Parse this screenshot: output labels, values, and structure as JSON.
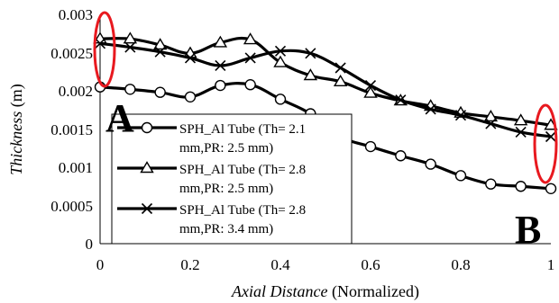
{
  "chart_data": {
    "type": "line",
    "xlabel_italic": "Axial Distance",
    "xlabel_rest": " (Normalized)",
    "ylabel_italic": "Thickness",
    "ylabel_rest": " (m)",
    "xlim": [
      0,
      1
    ],
    "ylim": [
      0,
      0.003
    ],
    "xticks": [
      0,
      0.2,
      0.4,
      0.6,
      0.8,
      1
    ],
    "xtick_labels": [
      "0",
      "0.2",
      "0.4",
      "0.6",
      "0.8",
      "1"
    ],
    "yticks": [
      0,
      0.0005,
      0.001,
      0.0015,
      0.002,
      0.0025,
      0.003
    ],
    "ytick_labels": [
      "0",
      "0.0005",
      "0.001",
      "0.0015",
      "0.002",
      "0.0025",
      "0.003"
    ],
    "grid": false,
    "legend_position": "bottom-left",
    "series": [
      {
        "name_line1": "SPH_Al Tube (Th= 2.1",
        "name_line2": "mm,PR: 2.5 mm)",
        "marker": "circle",
        "x": [
          0,
          0.0667,
          0.1333,
          0.2,
          0.2667,
          0.3333,
          0.4,
          0.4667,
          0.5333,
          0.6,
          0.6667,
          0.7333,
          0.8,
          0.8667,
          0.9333,
          1
        ],
        "y": [
          0.00205,
          0.00202,
          0.00198,
          0.00192,
          0.00207,
          0.00208,
          0.00189,
          0.0017,
          0.0014,
          0.00127,
          0.00115,
          0.00104,
          0.00089,
          0.00078,
          0.00075,
          0.00072
        ]
      },
      {
        "name_line1": "SPH_Al Tube (Th= 2.8",
        "name_line2": "mm,PR: 2.5 mm)",
        "marker": "triangle",
        "x": [
          0,
          0.0667,
          0.1333,
          0.2,
          0.2667,
          0.3333,
          0.4,
          0.4667,
          0.5333,
          0.6,
          0.6667,
          0.7333,
          0.8,
          0.8667,
          0.9333,
          1
        ],
        "y": [
          0.00268,
          0.00268,
          0.0026,
          0.00249,
          0.00263,
          0.00267,
          0.00237,
          0.0022,
          0.00212,
          0.00197,
          0.00187,
          0.0018,
          0.00171,
          0.00166,
          0.00161,
          0.00155
        ]
      },
      {
        "name_line1": "SPH_Al Tube (Th= 2.8",
        "name_line2": "mm,PR: 3.4 mm)",
        "marker": "x",
        "x": [
          0,
          0.0667,
          0.1333,
          0.2,
          0.2667,
          0.3333,
          0.4,
          0.4667,
          0.5333,
          0.6,
          0.6667,
          0.7333,
          0.8,
          0.8667,
          0.9333,
          1
        ],
        "y": [
          0.00262,
          0.00257,
          0.00251,
          0.00243,
          0.00233,
          0.00243,
          0.00252,
          0.00249,
          0.0023,
          0.00207,
          0.00188,
          0.00176,
          0.00168,
          0.00157,
          0.00146,
          0.0014
        ]
      }
    ],
    "annotations": [
      {
        "label": "A",
        "type": "highlight-ellipse",
        "x": 0,
        "y": 0.0026
      },
      {
        "label": "B",
        "type": "highlight-ellipse",
        "x": 1,
        "y": 0.0014
      }
    ],
    "colors": {
      "series": "#000000",
      "highlight": "#e8191f"
    }
  }
}
